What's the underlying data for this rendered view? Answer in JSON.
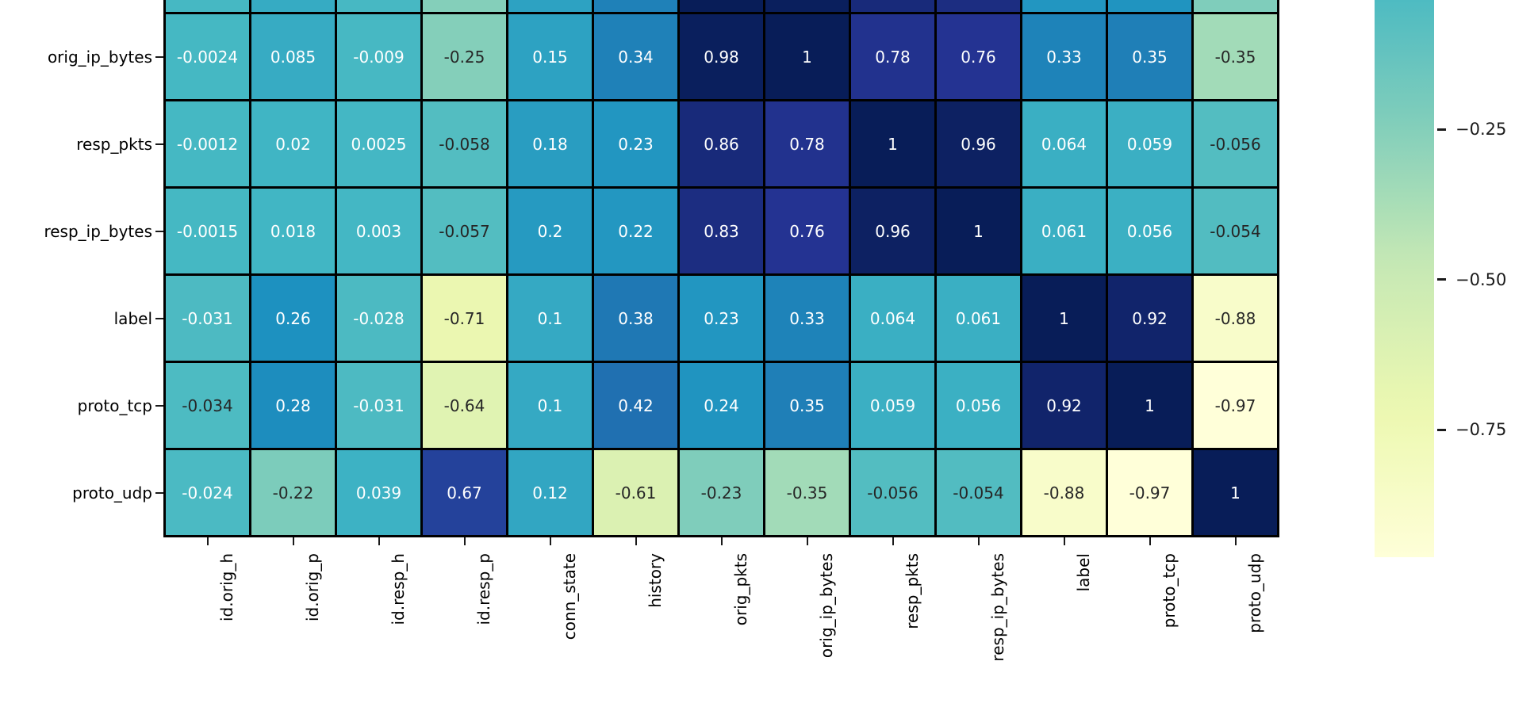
{
  "chart_data": {
    "type": "heatmap",
    "title": "",
    "colormap": "YlGnBu",
    "vmin": -0.97,
    "vmax": 1,
    "grid_lines": "black cell borders",
    "legend_position": "colorbar right",
    "columns": [
      "id.orig_h",
      "id.orig_p",
      "id.resp_h",
      "id.resp_p",
      "conn_state",
      "history",
      "orig_pkts",
      "orig_ip_bytes",
      "resp_pkts",
      "resp_ip_bytes",
      "label",
      "proto_tcp",
      "proto_udp"
    ],
    "rows": [
      {
        "label": "orig_ip_bytes",
        "values": [
          "-0.0024",
          "0.085",
          "-0.009",
          "-0.25",
          "0.15",
          "0.34",
          "0.98",
          "1",
          "0.78",
          "0.76",
          "0.33",
          "0.35",
          "-0.35"
        ]
      },
      {
        "label": "resp_pkts",
        "values": [
          "-0.0012",
          "0.02",
          "0.0025",
          "-0.058",
          "0.18",
          "0.23",
          "0.86",
          "0.78",
          "1",
          "0.96",
          "0.064",
          "0.059",
          "-0.056"
        ]
      },
      {
        "label": "resp_ip_bytes",
        "values": [
          "-0.0015",
          "0.018",
          "0.003",
          "-0.057",
          "0.2",
          "0.22",
          "0.83",
          "0.76",
          "0.96",
          "1",
          "0.061",
          "0.056",
          "-0.054"
        ]
      },
      {
        "label": "label",
        "values": [
          "-0.031",
          "0.26",
          "-0.028",
          "-0.71",
          "0.1",
          "0.38",
          "0.23",
          "0.33",
          "0.064",
          "0.061",
          "1",
          "0.92",
          "-0.88"
        ]
      },
      {
        "label": "proto_tcp",
        "values": [
          "-0.034",
          "0.28",
          "-0.031",
          "-0.64",
          "0.1",
          "0.42",
          "0.24",
          "0.35",
          "0.059",
          "0.056",
          "0.92",
          "1",
          "-0.97"
        ]
      },
      {
        "label": "proto_udp",
        "values": [
          "-0.024",
          "-0.22",
          "0.039",
          "0.67",
          "0.12",
          "-0.61",
          "-0.23",
          "-0.35",
          "-0.056",
          "-0.054",
          "-0.88",
          "-0.97",
          "1"
        ]
      }
    ],
    "top_partial_row": {
      "note": "row cut off at the top edge of the screenshot; only cell colors visible, no text",
      "values": [
        -0.003,
        0.09,
        -0.01,
        -0.25,
        0.15,
        0.34,
        1,
        0.98,
        0.86,
        0.83,
        0.23,
        0.24,
        -0.23
      ]
    },
    "colorbar": {
      "tick_labels": [
        "−0.25",
        "−0.50",
        "−0.75"
      ],
      "tick_values": [
        -0.25,
        -0.5,
        -0.75
      ],
      "visible_top_value": -0.035,
      "visible_bottom_value": -0.962
    },
    "annotation_text_colors": {
      "on_dark_cells": "#ffffff",
      "on_light_cells": "#262626"
    }
  }
}
